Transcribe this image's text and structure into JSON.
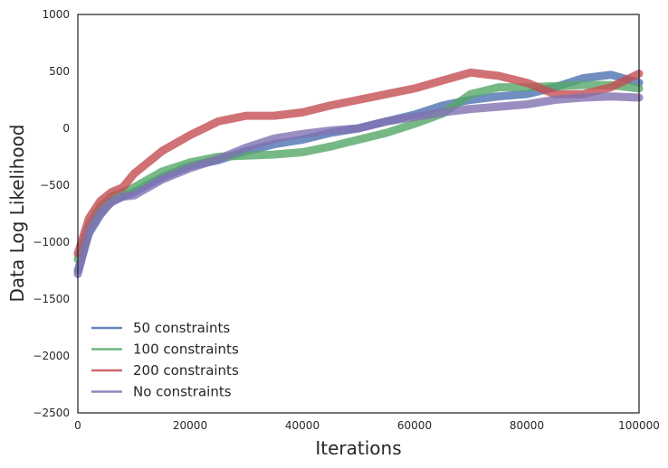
{
  "chart_data": {
    "type": "line",
    "title": "",
    "xlabel": "Iterations",
    "ylabel": "Data Log Likelihood",
    "xlim": [
      0,
      100000
    ],
    "ylim": [
      -2500,
      1000
    ],
    "xticks": [
      0,
      20000,
      40000,
      60000,
      80000,
      100000
    ],
    "yticks": [
      -2500,
      -2000,
      -1500,
      -1000,
      -500,
      0,
      500,
      1000
    ],
    "grid": false,
    "legend_position": "bottom-left",
    "x": [
      0,
      2000,
      4000,
      6000,
      8000,
      10000,
      15000,
      20000,
      25000,
      30000,
      35000,
      40000,
      45000,
      50000,
      55000,
      60000,
      65000,
      70000,
      75000,
      80000,
      85000,
      90000,
      95000,
      100000
    ],
    "series": [
      {
        "name": "50 constraints",
        "color": "#4c72b0",
        "values": [
          -1250,
          -920,
          -760,
          -640,
          -600,
          -560,
          -430,
          -330,
          -280,
          -200,
          -140,
          -100,
          -40,
          0,
          60,
          120,
          200,
          250,
          280,
          300,
          360,
          440,
          470,
          400
        ]
      },
      {
        "name": "100 constraints",
        "color": "#55a868",
        "values": [
          -1150,
          -850,
          -690,
          -600,
          -560,
          -520,
          -380,
          -300,
          -250,
          -240,
          -230,
          -210,
          -160,
          -100,
          -40,
          40,
          130,
          300,
          360,
          360,
          370,
          380,
          380,
          350
        ]
      },
      {
        "name": "200 constraints",
        "color": "#c44e52",
        "values": [
          -1100,
          -790,
          -640,
          -560,
          -520,
          -400,
          -200,
          -60,
          60,
          110,
          110,
          140,
          200,
          250,
          300,
          350,
          420,
          490,
          460,
          400,
          300,
          300,
          360,
          480
        ]
      },
      {
        "name": "No constraints",
        "color": "#8172b2",
        "values": [
          -1280,
          -900,
          -740,
          -650,
          -600,
          -590,
          -450,
          -350,
          -270,
          -170,
          -90,
          -50,
          -20,
          0,
          60,
          100,
          140,
          170,
          190,
          210,
          250,
          270,
          280,
          270
        ]
      }
    ]
  }
}
